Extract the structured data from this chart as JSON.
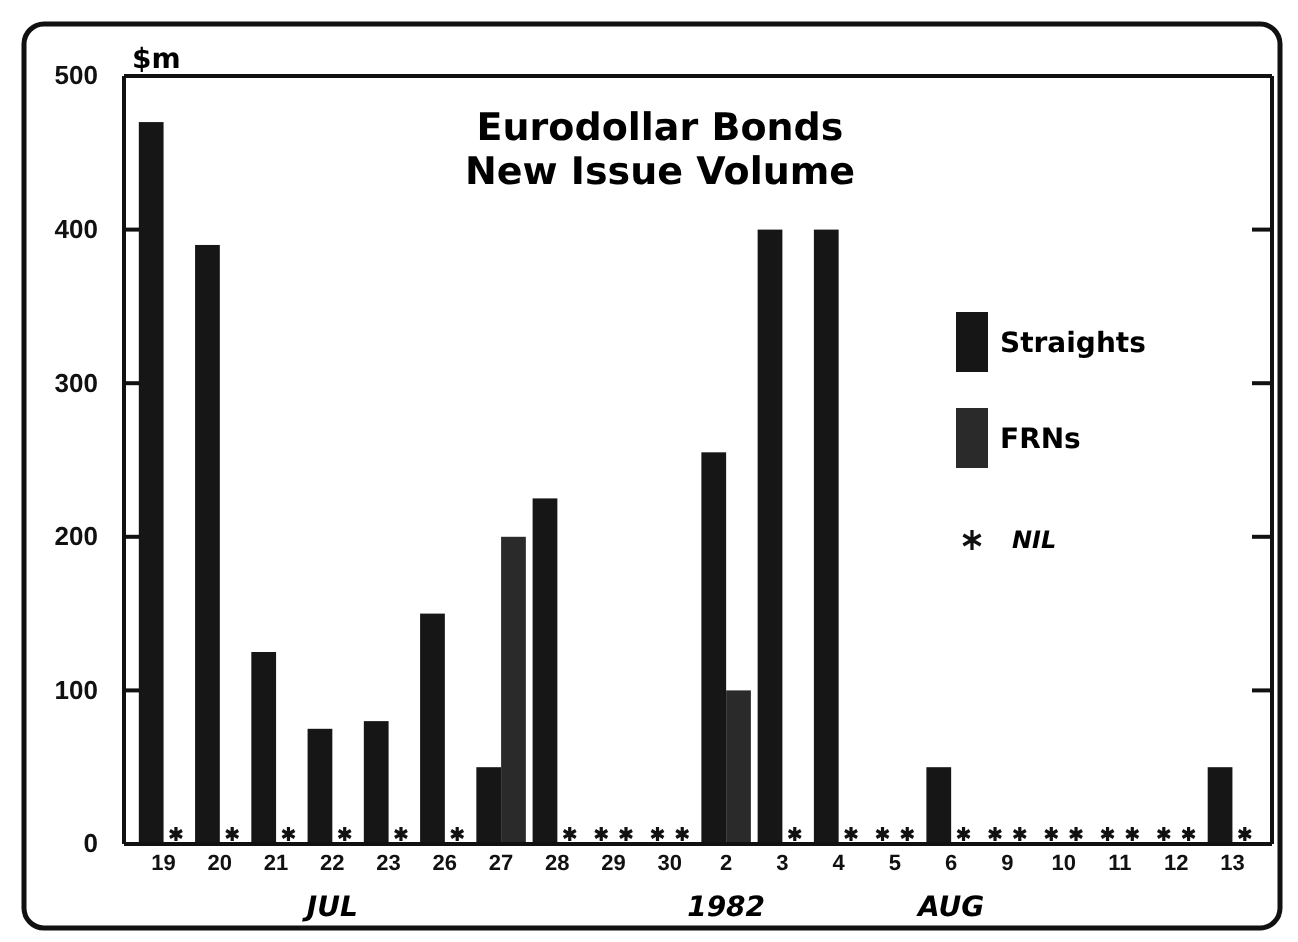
{
  "chart_data": {
    "type": "bar",
    "title": "Eurodollar Bonds\nNew Issue Volume",
    "ylabel": "$m",
    "categories": [
      "19",
      "20",
      "21",
      "22",
      "23",
      "26",
      "27",
      "28",
      "29",
      "30",
      "2",
      "3",
      "4",
      "5",
      "6",
      "9",
      "10",
      "11",
      "12",
      "13"
    ],
    "series": [
      {
        "name": "Straights",
        "color": "#161616",
        "values": [
          470,
          390,
          125,
          75,
          80,
          150,
          50,
          225,
          0,
          0,
          255,
          400,
          400,
          0,
          50,
          0,
          0,
          0,
          0,
          50
        ]
      },
      {
        "name": "FRNs",
        "color": "#2a2a2a",
        "values": [
          0,
          0,
          0,
          0,
          0,
          0,
          200,
          0,
          0,
          0,
          100,
          0,
          0,
          0,
          0,
          0,
          0,
          0,
          0,
          0
        ]
      }
    ],
    "ylim": [
      0,
      500
    ],
    "yticks": [
      0,
      100,
      200,
      300,
      400,
      500
    ],
    "legend": "right",
    "annotations": [
      "NIL",
      "JUL",
      "1982",
      "AUG"
    ]
  }
}
